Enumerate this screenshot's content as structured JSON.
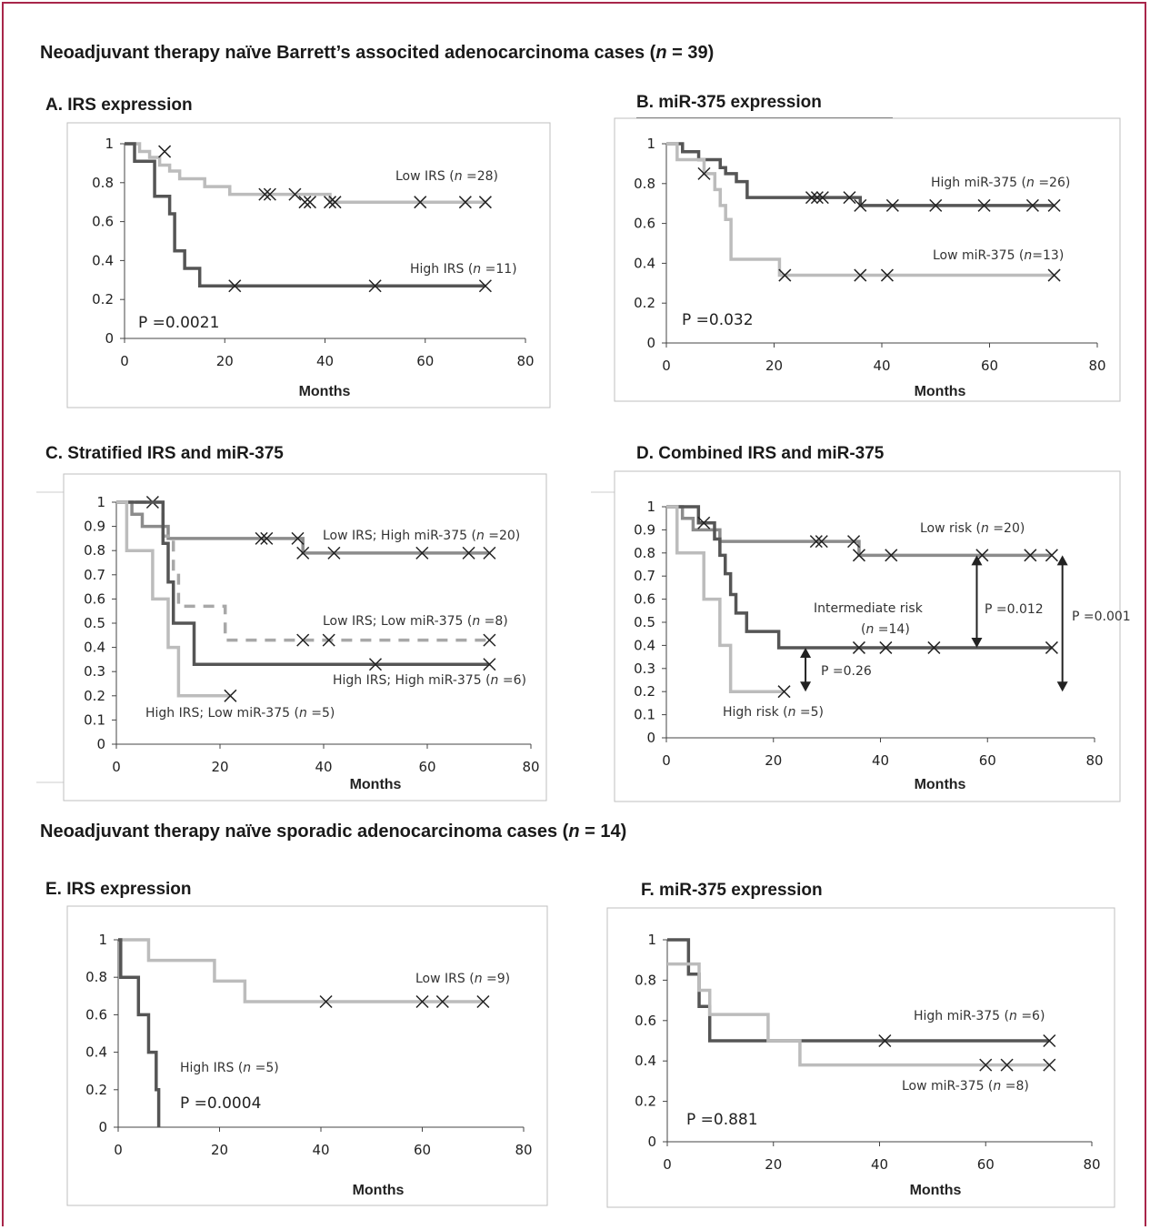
{
  "headings": {
    "barretts_prefix": "Neoadjuvant therapy naïve Barrett’s associted adenocarcinoma cases (",
    "barretts_n": "n",
    "barretts_suffix": " = 39)",
    "sporadic_prefix": "Neoadjuvant therapy naïve sporadic adenocarcinoma cases (",
    "sporadic_n": "n",
    "sporadic_suffix": " = 14)"
  },
  "colors": {
    "frame": "#a8264a",
    "dark_series": "#555555",
    "mid_series": "#8c8c8c",
    "light_series": "#bcbcbc",
    "dashed_series": "#a8a8a8"
  },
  "chart_data": [
    {
      "id": "A",
      "type": "line",
      "subtype": "kaplan-meier",
      "title": "A. IRS expression",
      "xlabel": "Months",
      "ylabel": "",
      "xlim": [
        0,
        80
      ],
      "ylim": [
        0,
        1
      ],
      "xticks": [
        "0",
        "20",
        "40",
        "60",
        "80"
      ],
      "yticks": [
        "0",
        "0.2",
        "0.4",
        "0.6",
        "0.8",
        "1"
      ],
      "p_value": "P =0.0021",
      "series": [
        {
          "name": "Low IRS (n =28)",
          "label_prefix": "Low IRS (",
          "label_suffix": " =28)",
          "color": "#bcbcbc",
          "dashed": false,
          "steps": [
            [
              0,
              1
            ],
            [
              3,
              0.96
            ],
            [
              5,
              0.93
            ],
            [
              7,
              0.89
            ],
            [
              9,
              0.86
            ],
            [
              11,
              0.82
            ],
            [
              16,
              0.78
            ],
            [
              21,
              0.74
            ],
            [
              41,
              0.7
            ]
          ],
          "censored": [
            [
              8,
              0.96
            ],
            [
              28,
              0.74
            ],
            [
              29,
              0.74
            ],
            [
              34,
              0.74
            ],
            [
              36,
              0.7
            ],
            [
              37,
              0.7
            ],
            [
              41,
              0.7
            ],
            [
              42,
              0.7
            ],
            [
              59,
              0.7
            ],
            [
              68,
              0.7
            ],
            [
              72,
              0.7
            ]
          ]
        },
        {
          "name": "High IRS (n =11)",
          "label_prefix": "High IRS (",
          "label_suffix": " =11)",
          "color": "#555555",
          "dashed": false,
          "steps": [
            [
              0,
              1
            ],
            [
              2,
              0.91
            ],
            [
              6,
              0.73
            ],
            [
              9,
              0.64
            ],
            [
              10,
              0.45
            ],
            [
              12,
              0.36
            ],
            [
              15,
              0.27
            ]
          ],
          "censored": [
            [
              22,
              0.27
            ],
            [
              50,
              0.27
            ],
            [
              72,
              0.27
            ]
          ]
        }
      ]
    },
    {
      "id": "B",
      "type": "line",
      "subtype": "kaplan-meier",
      "title": "B. miR-375 expression",
      "xlabel": "Months",
      "ylabel": "",
      "xlim": [
        0,
        80
      ],
      "ylim": [
        0,
        1
      ],
      "xticks": [
        "0",
        "20",
        "40",
        "60",
        "80"
      ],
      "yticks": [
        "0",
        "0.2",
        "0.4",
        "0.6",
        "0.8",
        "1"
      ],
      "p_value": "P =0.032",
      "series": [
        {
          "name": "High miR-375 (n =26)",
          "label_prefix": "High miR-375 (",
          "label_suffix": " =26)",
          "color": "#555555",
          "dashed": false,
          "steps": [
            [
              0,
              1
            ],
            [
              3,
              0.96
            ],
            [
              6,
              0.92
            ],
            [
              10,
              0.88
            ],
            [
              11,
              0.85
            ],
            [
              13,
              0.81
            ],
            [
              15,
              0.73
            ],
            [
              36,
              0.69
            ]
          ],
          "censored": [
            [
              27,
              0.73
            ],
            [
              28,
              0.73
            ],
            [
              29,
              0.73
            ],
            [
              34,
              0.73
            ],
            [
              36,
              0.69
            ],
            [
              42,
              0.69
            ],
            [
              50,
              0.69
            ],
            [
              59,
              0.69
            ],
            [
              68,
              0.69
            ],
            [
              72,
              0.69
            ]
          ]
        },
        {
          "name": "Low miR-375 (n=13)",
          "label_prefix": "Low miR-375 (",
          "label_suffix": "=13)",
          "color": "#bcbcbc",
          "dashed": false,
          "steps": [
            [
              0,
              1
            ],
            [
              2,
              0.92
            ],
            [
              7,
              0.85
            ],
            [
              9,
              0.77
            ],
            [
              10,
              0.69
            ],
            [
              11,
              0.62
            ],
            [
              12,
              0.42
            ],
            [
              21,
              0.34
            ]
          ],
          "censored": [
            [
              7,
              0.85
            ],
            [
              22,
              0.34
            ],
            [
              36,
              0.34
            ],
            [
              41,
              0.34
            ],
            [
              72,
              0.34
            ]
          ]
        }
      ]
    },
    {
      "id": "C",
      "type": "line",
      "subtype": "kaplan-meier",
      "title": "C. Stratified IRS and miR-375",
      "xlabel": "Months",
      "ylabel": "",
      "xlim": [
        0,
        80
      ],
      "ylim": [
        0,
        1
      ],
      "xticks": [
        "0",
        "20",
        "40",
        "60",
        "80"
      ],
      "yticks": [
        "0",
        "0.1",
        "0.2",
        "0.3",
        "0.4",
        "0.5",
        "0.6",
        "0.7",
        "0.8",
        "0.9",
        "1"
      ],
      "series": [
        {
          "name": "Low IRS; High miR-375 (n =20)",
          "label_prefix": "Low IRS; High miR-375 (",
          "label_suffix": " =20)",
          "color": "#8c8c8c",
          "dashed": false,
          "steps": [
            [
              0,
              1
            ],
            [
              3,
              0.95
            ],
            [
              5,
              0.9
            ],
            [
              10,
              0.85
            ],
            [
              36,
              0.79
            ]
          ],
          "censored": [
            [
              28,
              0.85
            ],
            [
              29,
              0.85
            ],
            [
              35,
              0.85
            ],
            [
              36,
              0.79
            ],
            [
              42,
              0.79
            ],
            [
              59,
              0.79
            ],
            [
              68,
              0.79
            ],
            [
              72,
              0.79
            ]
          ]
        },
        {
          "name": "Low IRS; Low miR-375 (n =8)",
          "label_prefix": "Low IRS; Low miR-375 (",
          "label_suffix": " =8)",
          "color": "#a8a8a8",
          "dashed": true,
          "steps": [
            [
              0,
              1
            ],
            [
              9,
              0.86
            ],
            [
              11,
              0.71
            ],
            [
              12,
              0.57
            ],
            [
              21,
              0.43
            ]
          ],
          "censored": [
            [
              7,
              1
            ],
            [
              36,
              0.43
            ],
            [
              41,
              0.43
            ],
            [
              72,
              0.43
            ]
          ]
        },
        {
          "name": "High IRS; High miR-375 (n =6)",
          "label_prefix": "High IRS; High miR-375 (",
          "label_suffix": " =6)",
          "color": "#555555",
          "dashed": false,
          "steps": [
            [
              0,
              1
            ],
            [
              9,
              0.83
            ],
            [
              10,
              0.67
            ],
            [
              11,
              0.5
            ],
            [
              15,
              0.33
            ]
          ],
          "censored": [
            [
              50,
              0.33
            ],
            [
              72,
              0.33
            ]
          ]
        },
        {
          "name": "High IRS; Low miR-375 (n =5)",
          "label_prefix": "High IRS; Low miR-375 (",
          "label_suffix": " =5)",
          "color": "#bcbcbc",
          "dashed": false,
          "steps": [
            [
              0,
              1
            ],
            [
              2,
              0.8
            ],
            [
              7,
              0.6
            ],
            [
              10,
              0.4
            ],
            [
              12,
              0.2
            ]
          ],
          "censored": [
            [
              22,
              0.2
            ]
          ]
        }
      ]
    },
    {
      "id": "D",
      "type": "line",
      "subtype": "kaplan-meier",
      "title": "D. Combined IRS and miR-375",
      "xlabel": "Months",
      "ylabel": "",
      "xlim": [
        0,
        80
      ],
      "ylim": [
        0,
        1
      ],
      "xticks": [
        "0",
        "20",
        "40",
        "60",
        "80"
      ],
      "yticks": [
        "0",
        "0.1",
        "0.2",
        "0.3",
        "0.4",
        "0.5",
        "0.6",
        "0.7",
        "0.8",
        "0.9",
        "1"
      ],
      "annotations": [
        "P =0.26",
        "P =0.012",
        "P =0.001"
      ],
      "series": [
        {
          "name": "Low risk (n =20)",
          "label_prefix": "Low risk (",
          "label_suffix": " =20)",
          "color": "#8c8c8c",
          "dashed": false,
          "steps": [
            [
              0,
              1
            ],
            [
              3,
              0.95
            ],
            [
              5,
              0.9
            ],
            [
              10,
              0.85
            ],
            [
              36,
              0.79
            ]
          ],
          "censored": [
            [
              28,
              0.85
            ],
            [
              29,
              0.85
            ],
            [
              35,
              0.85
            ],
            [
              36,
              0.79
            ],
            [
              42,
              0.79
            ],
            [
              59,
              0.79
            ],
            [
              68,
              0.79
            ],
            [
              72,
              0.79
            ]
          ]
        },
        {
          "name": "Intermediate risk (n =14)",
          "label_line1": "Intermediate risk",
          "label_prefix": "(",
          "label_suffix": " =14)",
          "color": "#555555",
          "dashed": false,
          "steps": [
            [
              0,
              1
            ],
            [
              6,
              0.93
            ],
            [
              9,
              0.86
            ],
            [
              10,
              0.79
            ],
            [
              11,
              0.71
            ],
            [
              12,
              0.62
            ],
            [
              13,
              0.54
            ],
            [
              15,
              0.46
            ],
            [
              21,
              0.39
            ]
          ],
          "censored": [
            [
              7,
              0.93
            ],
            [
              36,
              0.39
            ],
            [
              41,
              0.39
            ],
            [
              50,
              0.39
            ],
            [
              72,
              0.39
            ]
          ]
        },
        {
          "name": "High risk (n =5)",
          "label_prefix": "High risk (",
          "label_suffix": " =5)",
          "color": "#bcbcbc",
          "dashed": false,
          "steps": [
            [
              0,
              1
            ],
            [
              2,
              0.8
            ],
            [
              7,
              0.6
            ],
            [
              10,
              0.4
            ],
            [
              12,
              0.2
            ]
          ],
          "censored": [
            [
              22,
              0.2
            ]
          ]
        }
      ]
    },
    {
      "id": "E",
      "type": "line",
      "subtype": "kaplan-meier",
      "title": "E. IRS expression",
      "xlabel": "Months",
      "ylabel": "",
      "xlim": [
        0,
        80
      ],
      "ylim": [
        0,
        1
      ],
      "xticks": [
        "0",
        "20",
        "40",
        "60",
        "80"
      ],
      "yticks": [
        "0",
        "0.2",
        "0.4",
        "0.6",
        "0.8",
        "1"
      ],
      "p_value": "P =0.0004",
      "series": [
        {
          "name": "Low IRS (n =9)",
          "label_prefix": "Low IRS (",
          "label_suffix": " =9)",
          "color": "#bcbcbc",
          "dashed": false,
          "steps": [
            [
              0,
              1
            ],
            [
              6,
              0.89
            ],
            [
              19,
              0.78
            ],
            [
              25,
              0.67
            ]
          ],
          "censored": [
            [
              41,
              0.67
            ],
            [
              60,
              0.67
            ],
            [
              64,
              0.67
            ],
            [
              72,
              0.67
            ]
          ]
        },
        {
          "name": "High IRS (n =5)",
          "label_prefix": "High IRS (",
          "label_suffix": " =5)",
          "color": "#555555",
          "dashed": false,
          "steps": [
            [
              0,
              1
            ],
            [
              0.5,
              0.8
            ],
            [
              4,
              0.6
            ],
            [
              6,
              0.4
            ],
            [
              7.5,
              0.2
            ],
            [
              8,
              0
            ]
          ],
          "censored": []
        }
      ]
    },
    {
      "id": "F",
      "type": "line",
      "subtype": "kaplan-meier",
      "title": "F. miR-375 expression",
      "xlabel": "Months",
      "ylabel": "",
      "xlim": [
        0,
        80
      ],
      "ylim": [
        0,
        1
      ],
      "xticks": [
        "0",
        "20",
        "40",
        "60",
        "80"
      ],
      "yticks": [
        "0",
        "0.2",
        "0.4",
        "0.6",
        "0.8",
        "1"
      ],
      "p_value": "P =0.881",
      "series": [
        {
          "name": "High miR-375 (n =6)",
          "label_prefix": "High miR-375 (",
          "label_suffix": " =6)",
          "color": "#555555",
          "dashed": false,
          "steps": [
            [
              0,
              1
            ],
            [
              4,
              0.83
            ],
            [
              6,
              0.67
            ],
            [
              8,
              0.5
            ]
          ],
          "censored": [
            [
              41,
              0.5
            ],
            [
              72,
              0.5
            ]
          ]
        },
        {
          "name": "Low miR-375 (n =8)",
          "label_prefix": "Low miR-375 (",
          "label_suffix": " =8)",
          "color": "#bcbcbc",
          "dashed": false,
          "steps": [
            [
              0,
              0.88
            ],
            [
              6,
              0.75
            ],
            [
              8,
              0.63
            ],
            [
              19,
              0.5
            ],
            [
              25,
              0.38
            ]
          ],
          "censored": [
            [
              60,
              0.38
            ],
            [
              64,
              0.38
            ],
            [
              72,
              0.38
            ]
          ]
        }
      ]
    }
  ]
}
